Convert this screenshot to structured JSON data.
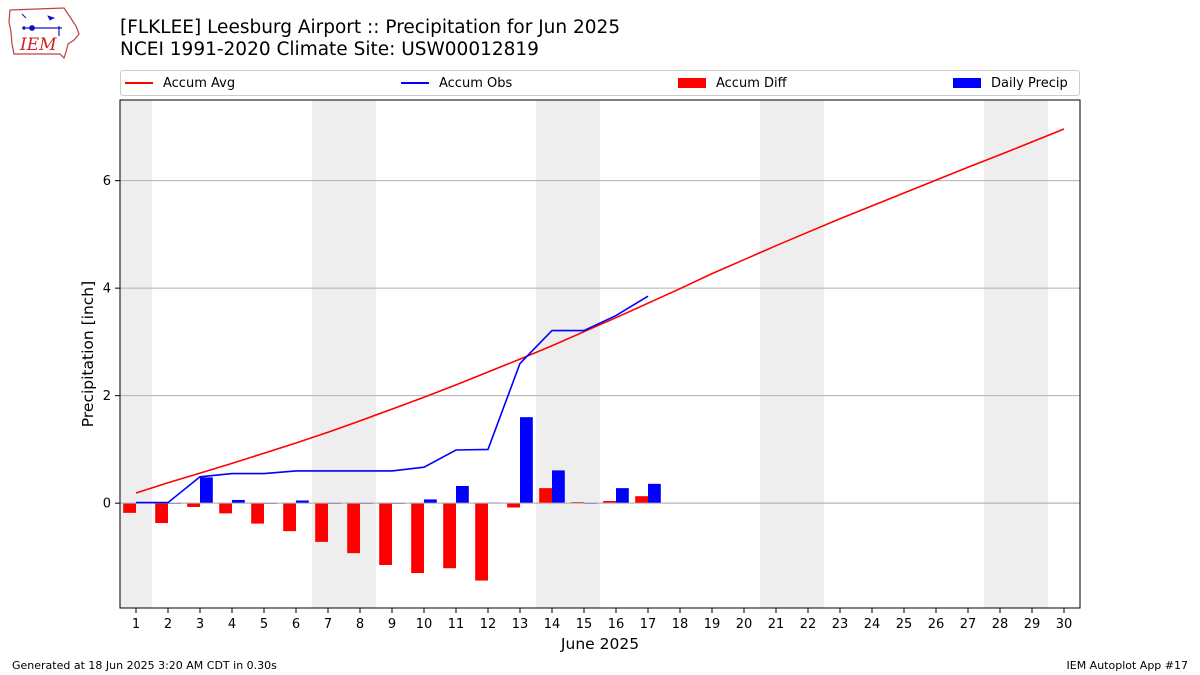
{
  "header": {
    "title_line1": "[FLKLEE] Leesburg Airport :: Precipitation for Jun 2025",
    "title_line2": "NCEI 1991-2020 Climate Site: USW00012819"
  },
  "logo": {
    "text": "IEM"
  },
  "legend": [
    {
      "label": "Accum Avg",
      "color": "#ff0000",
      "kind": "line"
    },
    {
      "label": "Accum Obs",
      "color": "#0000ff",
      "kind": "line"
    },
    {
      "label": "Accum Diff",
      "color": "#ff0000",
      "kind": "patch"
    },
    {
      "label": "Daily Precip",
      "color": "#0000ff",
      "kind": "patch"
    }
  ],
  "footer": {
    "generated": "Generated at 18 Jun 2025 3:20 AM CDT in 0.30s",
    "app": "IEM Autoplot App #17"
  },
  "chart_data": {
    "type": "bar",
    "xlabel": "June 2025",
    "ylabel": "Precipitation [inch]",
    "xlim": [
      0.5,
      30.5
    ],
    "ylim": [
      -1.95,
      7.5
    ],
    "yticks": [
      0,
      2,
      4,
      6
    ],
    "grid": "y",
    "legend_position": "top",
    "days": [
      1,
      2,
      3,
      4,
      5,
      6,
      7,
      8,
      9,
      10,
      11,
      12,
      13,
      14,
      15,
      16,
      17,
      18,
      19,
      20,
      21,
      22,
      23,
      24,
      25,
      26,
      27,
      28,
      29,
      30
    ],
    "weekend_days": [
      1,
      7,
      8,
      14,
      15,
      21,
      22,
      28,
      29
    ],
    "colors": {
      "avg": "#ff0000",
      "obs": "#0000ff",
      "weekend": "#eeeeee",
      "grid": "#b0b0b0"
    },
    "series": [
      {
        "name": "Accum Avg",
        "kind": "line",
        "values": [
          0.19,
          0.38,
          0.56,
          0.74,
          0.93,
          1.12,
          1.32,
          1.53,
          1.75,
          1.97,
          2.2,
          2.44,
          2.68,
          2.93,
          3.19,
          3.45,
          3.72,
          3.99,
          4.27,
          4.53,
          4.79,
          5.04,
          5.29,
          5.53,
          5.77,
          6.01,
          6.25,
          6.48,
          6.72,
          6.96
        ]
      },
      {
        "name": "Accum Obs",
        "kind": "line",
        "values": [
          0.01,
          0.01,
          0.49,
          0.55,
          0.55,
          0.6,
          0.6,
          0.6,
          0.6,
          0.67,
          0.99,
          1.0,
          2.6,
          3.21,
          3.21,
          3.49,
          3.85
        ]
      },
      {
        "name": "Accum Diff",
        "kind": "bar",
        "values": [
          -0.18,
          -0.37,
          -0.07,
          -0.19,
          -0.38,
          -0.52,
          -0.72,
          -0.93,
          -1.15,
          -1.3,
          -1.21,
          -1.44,
          -0.08,
          0.28,
          0.02,
          0.04,
          0.13
        ]
      },
      {
        "name": "Daily Precip",
        "kind": "bar",
        "values": [
          0.01,
          0.0,
          0.48,
          0.06,
          0.0,
          0.05,
          0.0,
          0.0,
          0.0,
          0.07,
          0.32,
          0.01,
          1.6,
          0.61,
          0.0,
          0.28,
          0.36
        ]
      }
    ]
  }
}
